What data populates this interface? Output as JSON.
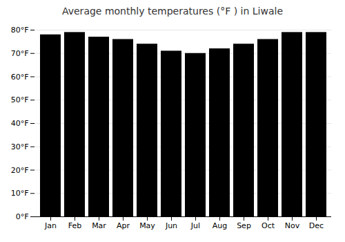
{
  "chart_data": {
    "type": "bar",
    "title": "Average monthly temperatures (°F ) in Liwale",
    "categories": [
      "Jan",
      "Feb",
      "Mar",
      "Apr",
      "May",
      "Jun",
      "Jul",
      "Aug",
      "Sep",
      "Oct",
      "Nov",
      "Dec"
    ],
    "values": [
      78,
      79,
      77,
      76,
      74,
      71,
      70,
      72,
      74,
      76,
      79,
      79
    ],
    "ylim": [
      0,
      80
    ],
    "yticks": [
      {
        "value": 0,
        "label": "0°F"
      },
      {
        "value": 10,
        "label": "10°F"
      },
      {
        "value": 20,
        "label": "20°F"
      },
      {
        "value": 30,
        "label": "30°F"
      },
      {
        "value": 40,
        "label": "40°F"
      },
      {
        "value": 50,
        "label": "50°F"
      },
      {
        "value": 60,
        "label": "60°F"
      },
      {
        "value": 70,
        "label": "70°F"
      },
      {
        "value": 80,
        "label": "80°F"
      }
    ],
    "grid": true
  }
}
